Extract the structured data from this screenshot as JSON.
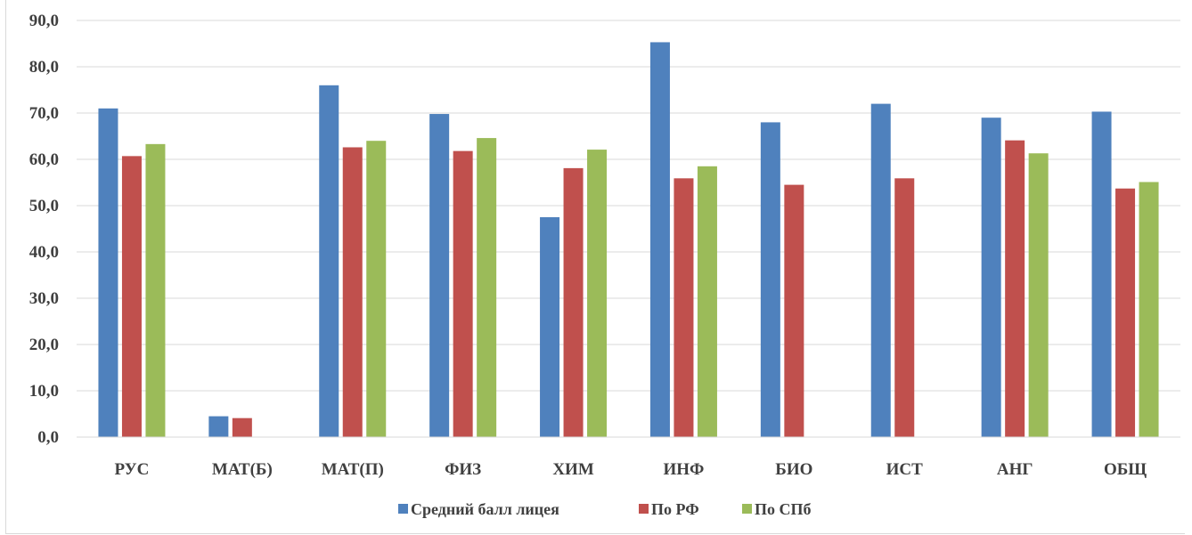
{
  "chart_data": {
    "type": "bar",
    "title": "",
    "xlabel": "",
    "ylabel": "",
    "ylim": [
      0,
      90
    ],
    "yticks": [
      "0,0",
      "10,0",
      "20,0",
      "30,0",
      "40,0",
      "50,0",
      "60,0",
      "70,0",
      "80,0",
      "90,0"
    ],
    "grid": true,
    "legend_position": "bottom",
    "categories": [
      "РУС",
      "МАТ(Б)",
      "МАТ(П)",
      "ФИЗ",
      "ХИМ",
      "ИНФ",
      "БИО",
      "ИСТ",
      "АНГ",
      "ОБЩ"
    ],
    "series": [
      {
        "name": "Средний балл лицея",
        "color": "#4f81bd",
        "values": [
          71.0,
          4.5,
          76.0,
          69.8,
          47.5,
          85.3,
          68.0,
          72.0,
          69.0,
          70.3
        ]
      },
      {
        "name": "По РФ",
        "color": "#c0504d",
        "values": [
          60.7,
          4.1,
          62.6,
          61.8,
          58.1,
          55.9,
          54.5,
          55.9,
          64.1,
          53.7
        ]
      },
      {
        "name": "По СПб",
        "color": "#9bbb59",
        "values": [
          63.3,
          null,
          64.0,
          64.6,
          62.1,
          58.5,
          null,
          null,
          61.3,
          55.1
        ]
      }
    ]
  }
}
